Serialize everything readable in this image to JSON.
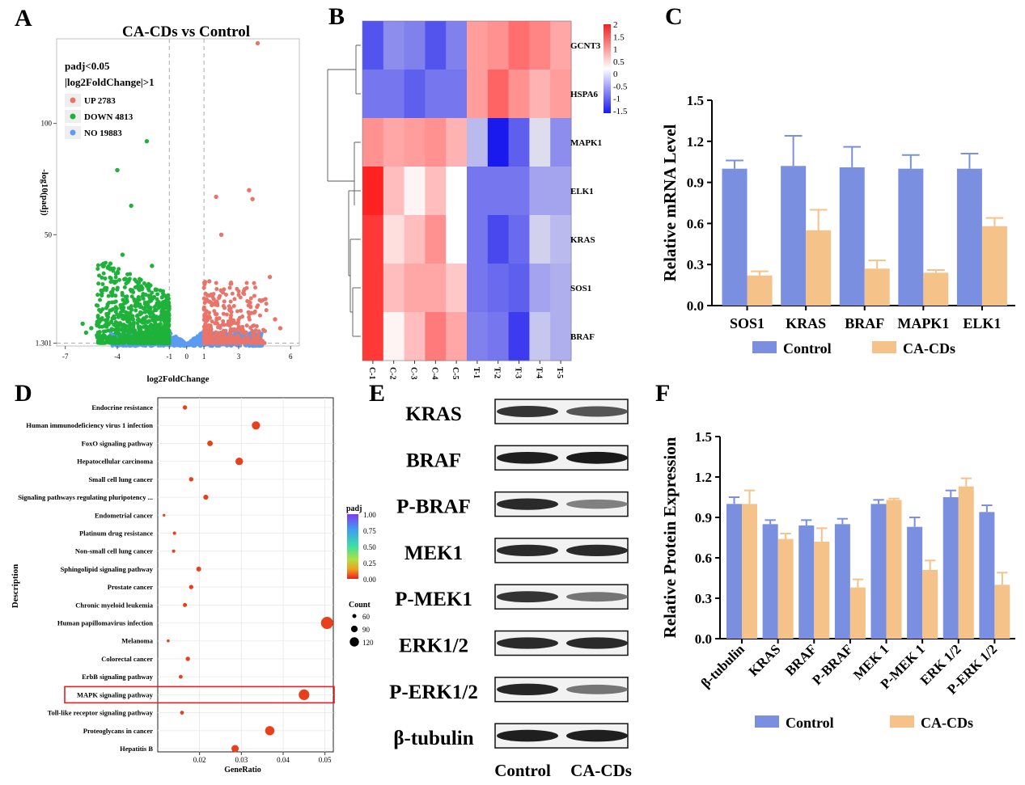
{
  "panel_letters": {
    "a": "A",
    "b": "B",
    "c": "C",
    "d": "D",
    "e": "E",
    "f": "F"
  },
  "colors": {
    "up": "#e8746a",
    "down": "#1fb23a",
    "no": "#5b9bf2",
    "control": "#7b8fe0",
    "cacds": "#f5c28a",
    "dot": "#e8401c",
    "hm_high": "#ee2222",
    "hm_low": "#1a1aee",
    "highlight": "#e02020"
  },
  "chart_data": [
    {
      "id": "A",
      "type": "scatter",
      "title": "CA-CDs vs Control",
      "xlabel": "log2FoldChange",
      "ylabel": "-log10(padj)",
      "xlim": [
        -7.5,
        6.5
      ],
      "ylim": [
        0,
        138
      ],
      "xticks": [
        "-7",
        "-4",
        "-1",
        "0",
        "1",
        "3",
        "6"
      ],
      "yticks": [
        "1.301",
        "50",
        "100"
      ],
      "threshold_lines": {
        "x": [
          -1,
          1
        ],
        "y": 1.301
      },
      "legend_header": [
        "padj<0.05",
        "|log2FoldChange|>1"
      ],
      "legend": [
        {
          "label": "UP 2783",
          "class": "up"
        },
        {
          "label": "DOWN 4813",
          "class": "down"
        },
        {
          "label": "NO 19883",
          "class": "no"
        }
      ],
      "counts": {
        "up": 2783,
        "down": 4813,
        "no": 19883
      },
      "highlight_points": [
        {
          "x": -2.3,
          "y": 92,
          "class": "down"
        },
        {
          "x": -4.0,
          "y": 79,
          "class": "down"
        },
        {
          "x": -3.2,
          "y": 63,
          "class": "down"
        },
        {
          "x": -3.7,
          "y": 41,
          "class": "down"
        },
        {
          "x": -4.4,
          "y": 37,
          "class": "down"
        },
        {
          "x": -2.0,
          "y": 36,
          "class": "down"
        },
        {
          "x": -6.0,
          "y": 10,
          "class": "down"
        },
        {
          "x": -5.5,
          "y": 8,
          "class": "down"
        },
        {
          "x": -5.8,
          "y": 6,
          "class": "down"
        },
        {
          "x": 4.1,
          "y": 136,
          "class": "up"
        },
        {
          "x": 3.6,
          "y": 70,
          "class": "up"
        },
        {
          "x": 3.8,
          "y": 66,
          "class": "up"
        },
        {
          "x": 1.7,
          "y": 67,
          "class": "up"
        },
        {
          "x": 2.0,
          "y": 50,
          "class": "up"
        },
        {
          "x": 4.8,
          "y": 31,
          "class": "up"
        },
        {
          "x": 5.4,
          "y": 8,
          "class": "up"
        },
        {
          "x": 5.1,
          "y": 12,
          "class": "up"
        }
      ]
    },
    {
      "id": "B",
      "type": "heatmap",
      "rows": [
        "GCNT3",
        "HSPA6",
        "MAPK1",
        "ELK1",
        "KRAS",
        "SOS1",
        "BRAF"
      ],
      "columns": [
        "C-1",
        "C-2",
        "C-3",
        "C-4",
        "C-5",
        "T-1",
        "T-2",
        "T-3",
        "T-4",
        "T-5"
      ],
      "values": [
        [
          -1.5,
          -1.0,
          -1.1,
          -1.5,
          -1.1,
          0.9,
          1.0,
          1.3,
          1.1,
          0.8
        ],
        [
          -1.2,
          -1.2,
          -1.4,
          -1.2,
          -1.2,
          0.9,
          1.4,
          1.0,
          0.7,
          0.9
        ],
        [
          1.0,
          0.8,
          0.9,
          1.0,
          0.7,
          -0.6,
          -2.0,
          -1.4,
          -0.3,
          -1.0
        ],
        [
          2.0,
          0.6,
          0.1,
          0.6,
          0.0,
          -1.2,
          -1.2,
          -1.2,
          -0.8,
          -0.8
        ],
        [
          1.8,
          0.3,
          0.6,
          1.0,
          0.0,
          -1.2,
          -1.6,
          -1.3,
          -0.4,
          -0.6
        ],
        [
          1.8,
          0.6,
          0.8,
          0.8,
          0.5,
          -1.2,
          -1.3,
          -1.4,
          -0.8,
          -0.7
        ],
        [
          1.8,
          0.1,
          0.6,
          1.2,
          0.8,
          -1.1,
          -1.2,
          -1.7,
          -0.5,
          -0.7
        ]
      ],
      "scale_ticks": [
        "2",
        "1.5",
        "1",
        "0.5",
        "0",
        "-0.5",
        "-1",
        "-1.5"
      ],
      "scale_range": [
        -2,
        2
      ]
    },
    {
      "id": "C",
      "type": "bar",
      "ylabel": "Relative mRNA  Level",
      "categories": [
        "SOS1",
        "KRAS",
        "BRAF",
        "MAPK1",
        "ELK1"
      ],
      "ylim": [
        0,
        1.5
      ],
      "yticks": [
        "0.0",
        "0.3",
        "0.6",
        "0.9",
        "1.2",
        "1.5"
      ],
      "series": [
        {
          "name": "Control",
          "values": [
            1.0,
            1.02,
            1.01,
            1.0,
            1.0
          ],
          "errors": [
            0.06,
            0.22,
            0.15,
            0.1,
            0.11
          ],
          "class": "control"
        },
        {
          "name": "CA-CDs",
          "values": [
            0.22,
            0.55,
            0.27,
            0.24,
            0.58
          ],
          "errors": [
            0.03,
            0.15,
            0.06,
            0.02,
            0.06
          ],
          "class": "cacds"
        }
      ]
    },
    {
      "id": "D",
      "type": "scatter",
      "xlabel": "GeneRatio",
      "ylabel": "Description",
      "xlim": [
        0.01,
        0.052
      ],
      "xticks": [
        "0.02",
        "0.03",
        "0.04",
        "0.05"
      ],
      "pathways": [
        {
          "label": "Endocrine resistance",
          "x": 0.0165,
          "count": 55
        },
        {
          "label": "Human immunodeficiency virus 1 infection",
          "x": 0.0335,
          "count": 95
        },
        {
          "label": "FoxO signaling pathway",
          "x": 0.0225,
          "count": 68
        },
        {
          "label": "Hepatocellular carcinoma",
          "x": 0.0295,
          "count": 88
        },
        {
          "label": "Small cell lung cancer",
          "x": 0.018,
          "count": 55
        },
        {
          "label": "Signaling pathways regulating pluripotency ...",
          "x": 0.0215,
          "count": 62
        },
        {
          "label": "Endometrial cancer",
          "x": 0.0115,
          "count": 38
        },
        {
          "label": "Platinum drug resistance",
          "x": 0.014,
          "count": 45
        },
        {
          "label": "Non-small cell lung cancer",
          "x": 0.0138,
          "count": 45
        },
        {
          "label": "Sphingolipid signaling pathway",
          "x": 0.0198,
          "count": 60
        },
        {
          "label": "Prostate cancer",
          "x": 0.018,
          "count": 55
        },
        {
          "label": "Chronic myeloid leukemia",
          "x": 0.0165,
          "count": 52
        },
        {
          "label": "Human papillomavirus infection",
          "x": 0.0505,
          "count": 135
        },
        {
          "label": "Melanoma",
          "x": 0.0125,
          "count": 40
        },
        {
          "label": "Colorectal cancer",
          "x": 0.0172,
          "count": 55
        },
        {
          "label": "ErbB signaling pathway",
          "x": 0.0155,
          "count": 50
        },
        {
          "label": "MAPK signaling pathway",
          "x": 0.045,
          "count": 120
        },
        {
          "label": "Toll-like receptor signaling pathway",
          "x": 0.0158,
          "count": 50
        },
        {
          "label": "Proteoglycans in cancer",
          "x": 0.0368,
          "count": 105
        },
        {
          "label": "Hepatitis B",
          "x": 0.0285,
          "count": 85
        }
      ],
      "highlight": "MAPK signaling pathway",
      "padj_legend": {
        "title": "padj",
        "ticks": [
          "1.00",
          "0.75",
          "0.50",
          "0.25",
          "0.00"
        ]
      },
      "count_legend": {
        "title": "Count",
        "items": [
          {
            "label": "60",
            "size": 60
          },
          {
            "label": "90",
            "size": 90
          },
          {
            "label": "120",
            "size": 120
          }
        ]
      }
    },
    {
      "id": "E",
      "type": "table",
      "bands": [
        "KRAS",
        "BRAF",
        "P-BRAF",
        "MEK1",
        "P-MEK1",
        "ERK1/2",
        "P-ERK1/2",
        "β-tubulin"
      ],
      "band_intensity": [
        [
          0.85,
          0.7
        ],
        [
          0.95,
          0.97
        ],
        [
          0.9,
          0.5
        ],
        [
          0.9,
          0.9
        ],
        [
          0.85,
          0.55
        ],
        [
          0.9,
          0.9
        ],
        [
          0.92,
          0.55
        ],
        [
          0.95,
          0.95
        ]
      ],
      "lanes": [
        "Control",
        "CA-CDs"
      ]
    },
    {
      "id": "F",
      "type": "bar",
      "ylabel": "Relative Protein Expression",
      "categories": [
        "β-tubulin",
        "KRAS",
        "BRAF",
        "P-BRAF",
        "MEK 1",
        "P-MEK 1",
        "ERK 1/2",
        "P-ERK 1/2"
      ],
      "ylim": [
        0,
        1.5
      ],
      "yticks": [
        "0.0",
        "0.3",
        "0.6",
        "0.9",
        "1.2",
        "1.5"
      ],
      "series": [
        {
          "name": "Control",
          "values": [
            1.0,
            0.85,
            0.84,
            0.85,
            1.0,
            0.83,
            1.05,
            0.94
          ],
          "errors": [
            0.05,
            0.03,
            0.04,
            0.04,
            0.03,
            0.07,
            0.05,
            0.05
          ],
          "class": "control"
        },
        {
          "name": "CA-CDs",
          "values": [
            1.0,
            0.74,
            0.72,
            0.38,
            1.03,
            0.51,
            1.13,
            0.4
          ],
          "errors": [
            0.1,
            0.04,
            0.1,
            0.06,
            0.01,
            0.07,
            0.06,
            0.09
          ],
          "class": "cacds"
        }
      ]
    }
  ]
}
